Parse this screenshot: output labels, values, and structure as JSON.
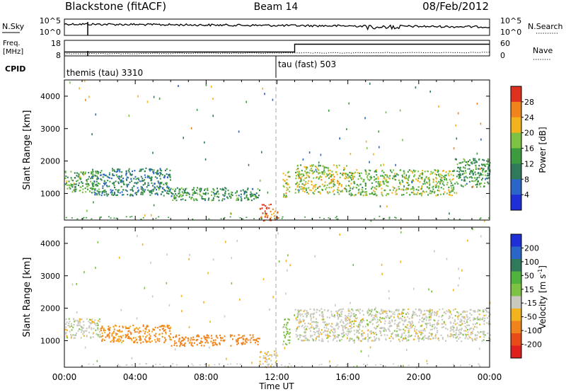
{
  "header": {
    "station": "Blackstone (fitACF)",
    "beam": "Beam 14",
    "date": "08/Feb/2012"
  },
  "noise_panel": {
    "left_label": "N.Sky",
    "right_label": "N.Search",
    "left_ticks": [
      "10^5",
      "10^0"
    ],
    "right_ticks": [
      "10^5",
      "10^0"
    ]
  },
  "freq_panel": {
    "left_label_1": "Freq.",
    "left_label_2": "[MHz]",
    "right_label": "Nave",
    "left_ticks": [
      "18",
      "8"
    ],
    "right_ticks": [
      "60",
      "0"
    ],
    "freq_steps": [
      {
        "hour": 0.0,
        "value": 10.5
      },
      {
        "hour": 13.0,
        "value": 15.5
      },
      {
        "hour": 24.0,
        "value": 15.5
      }
    ]
  },
  "cpid_panel": {
    "label": "CPID",
    "modes": [
      {
        "start_hour": 0.0,
        "label": "themis (tau) 3310"
      },
      {
        "start_hour": 12.0,
        "label": "tau (fast) 503"
      }
    ]
  },
  "colors": {
    "power_scale": [
      "#1f2fd8",
      "#2a66c9",
      "#2f7a5a",
      "#3c9a3f",
      "#7cc243",
      "#f3b31d",
      "#f0831c",
      "#e0301e"
    ],
    "velocity_scale": [
      "#1f2fd8",
      "#2a66c9",
      "#2f7a5a",
      "#4fb33c",
      "#7cc243",
      "#c9c9c0",
      "#f3b31d",
      "#f0831c",
      "#e84a18",
      "#e0201c"
    ]
  },
  "chart_data": [
    {
      "type": "heatmap",
      "name": "power",
      "ylabel": "Slant Range [km]",
      "xlabel": "",
      "xlim": [
        0,
        24
      ],
      "ylim": [
        180,
        4500
      ],
      "x_ticks": [
        "00:00",
        "04:00",
        "08:00",
        "12:00",
        "16:00",
        "20:00",
        "00:00"
      ],
      "y_ticks": [
        1000,
        2000,
        3000,
        4000
      ],
      "colorbar": {
        "label": "Power [dB]",
        "ticks": [
          "4",
          "8",
          "12",
          "16",
          "20",
          "24",
          "28"
        ],
        "range": [
          0,
          30
        ]
      },
      "echo_bands": [
        {
          "x": [
            0.0,
            2.0
          ],
          "range_km": [
            1050,
            1700
          ],
          "value": 14
        },
        {
          "x": [
            1.5,
            6.0
          ],
          "range_km": [
            950,
            1800
          ],
          "value": 10
        },
        {
          "x": [
            6.0,
            11.0
          ],
          "range_km": [
            800,
            1200
          ],
          "value": 12
        },
        {
          "x": [
            11.0,
            12.0
          ],
          "range_km": [
            180,
            700
          ],
          "value": 26
        },
        {
          "x": [
            12.3,
            12.7
          ],
          "range_km": [
            900,
            1700
          ],
          "value": 18
        },
        {
          "x": [
            13.0,
            16.0
          ],
          "range_km": [
            1000,
            1900
          ],
          "value": 18
        },
        {
          "x": [
            16.0,
            22.0
          ],
          "range_km": [
            950,
            1750
          ],
          "value": 16
        },
        {
          "x": [
            22.0,
            24.0
          ],
          "range_km": [
            1200,
            2100
          ],
          "value": 12
        }
      ]
    },
    {
      "type": "heatmap",
      "name": "velocity",
      "ylabel": "Slant Range [km]",
      "xlabel": "Time UT",
      "xlim": [
        0,
        24
      ],
      "ylim": [
        180,
        4500
      ],
      "x_ticks": [
        "00:00",
        "04:00",
        "08:00",
        "12:00",
        "16:00",
        "20:00",
        "00:00"
      ],
      "y_ticks": [
        1000,
        2000,
        3000,
        4000
      ],
      "colorbar": {
        "label_main": "Velocity [m s",
        "label_sup": "-1",
        "label_end": "]",
        "ticks": [
          "200",
          "100",
          "50",
          "15",
          "-15",
          "-50",
          "-100",
          "-200"
        ]
      },
      "echo_bands": [
        {
          "x": [
            0.0,
            2.0
          ],
          "range_km": [
            1100,
            1700
          ],
          "value": 0
        },
        {
          "x": [
            2.0,
            6.0
          ],
          "range_km": [
            950,
            1500
          ],
          "value": -60
        },
        {
          "x": [
            6.0,
            11.0
          ],
          "range_km": [
            850,
            1200
          ],
          "value": -80
        },
        {
          "x": [
            11.0,
            12.0
          ],
          "range_km": [
            180,
            700
          ],
          "value": -20
        },
        {
          "x": [
            12.3,
            12.7
          ],
          "range_km": [
            900,
            1700
          ],
          "value": 30
        },
        {
          "x": [
            13.0,
            24.0
          ],
          "range_km": [
            1000,
            2000
          ],
          "value": 0
        }
      ]
    }
  ]
}
